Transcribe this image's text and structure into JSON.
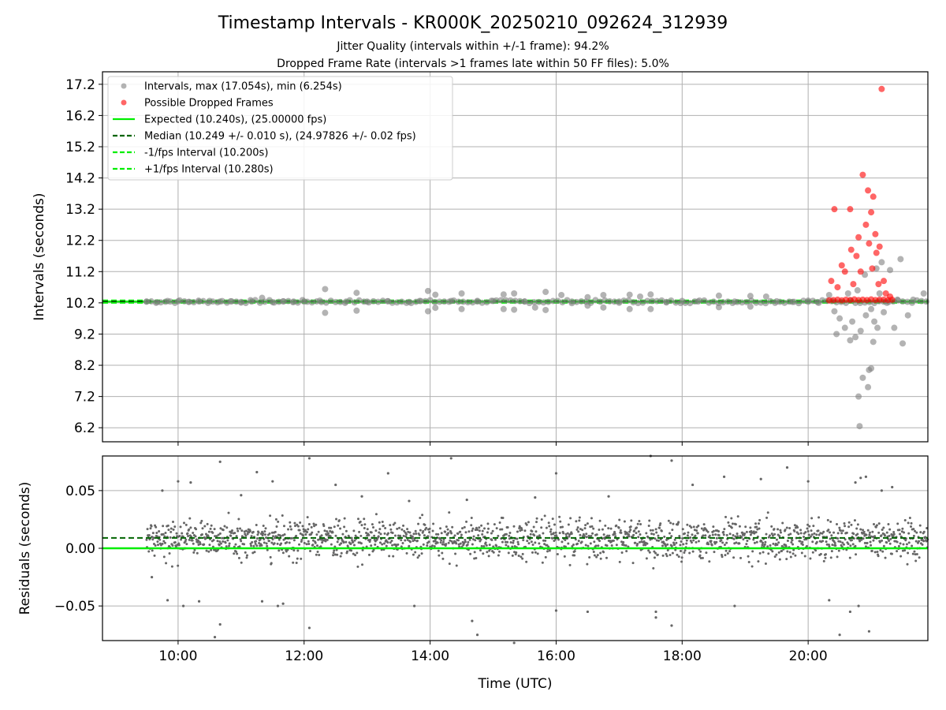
{
  "figure": {
    "title": "Timestamp Intervals - KR000K_20250210_092624_312939",
    "subtitle_1": "Jitter Quality (intervals within +/-1 frame): 94.2%",
    "subtitle_2": "Dropped Frame Rate (intervals >1 frames late within 50 FF files): 5.0%"
  },
  "colors": {
    "intervals": "#808080",
    "dropped": "#ff0000",
    "expected": "#00ee00",
    "median": "#006400",
    "bounds": "#00ee00",
    "residuals": "#666666",
    "grid": "#b0b0b0"
  },
  "chart_data": [
    {
      "type": "scatter",
      "panel": "top",
      "ylabel": "Intervals (seconds)",
      "xlabel": "",
      "xlim": [
        "08:48",
        "21:54"
      ],
      "ylim": [
        5.75,
        17.6
      ],
      "yticks": [
        6.2,
        7.2,
        8.2,
        9.2,
        10.2,
        11.2,
        12.2,
        13.2,
        14.2,
        15.2,
        16.2,
        17.2
      ],
      "grid": true,
      "legend_position": "top-left",
      "legend": [
        {
          "label": "Intervals, max (17.054s), min (6.254s)",
          "kind": "marker",
          "color": "#808080"
        },
        {
          "label": "Possible Dropped Frames",
          "kind": "marker",
          "color": "#ff0000"
        },
        {
          "label": "Expected (10.240s), (25.00000 fps)",
          "kind": "line-solid",
          "color": "#00ee00"
        },
        {
          "label": "Median (10.249 +/- 0.010 s), (24.97826 +/- 0.02 fps)",
          "kind": "line-dashed",
          "color": "#006400"
        },
        {
          "label": "-1/fps Interval (10.200s)",
          "kind": "line-dashed",
          "color": "#00ee00"
        },
        {
          "label": "+1/fps Interval (10.280s)",
          "kind": "line-dashed",
          "color": "#00ee00"
        }
      ],
      "lines": {
        "expected": 10.24,
        "median": 10.249,
        "minus_interval": 10.2,
        "plus_interval": 10.28
      },
      "series": [
        {
          "name": "Intervals, max (17.054s), min (6.254s)",
          "points": [
            [
              "09:30",
              10.24
            ],
            [
              "09:40",
              10.22
            ],
            [
              "09:50",
              10.26
            ],
            [
              "10:00",
              10.25
            ],
            [
              "10:10",
              10.23
            ],
            [
              "10:20",
              10.24
            ],
            [
              "10:30",
              10.26
            ],
            [
              "10:40",
              10.24
            ],
            [
              "10:50",
              10.25
            ],
            [
              "11:00",
              10.23
            ],
            [
              "11:10",
              10.24
            ],
            [
              "11:20",
              10.36
            ],
            [
              "11:30",
              10.22
            ],
            [
              "11:40",
              10.25
            ],
            [
              "11:50",
              10.24
            ],
            [
              "12:00",
              10.24
            ],
            [
              "12:15",
              10.27
            ],
            [
              "12:20",
              10.64
            ],
            [
              "12:20",
              9.88
            ],
            [
              "12:40",
              10.24
            ],
            [
              "12:50",
              10.52
            ],
            [
              "12:50",
              9.95
            ],
            [
              "13:00",
              10.24
            ],
            [
              "13:20",
              10.25
            ],
            [
              "13:40",
              10.23
            ],
            [
              "13:50",
              10.26
            ],
            [
              "13:58",
              10.58
            ],
            [
              "13:58",
              9.93
            ],
            [
              "14:05",
              10.46
            ],
            [
              "14:05",
              10.04
            ],
            [
              "14:20",
              10.26
            ],
            [
              "14:30",
              10.5
            ],
            [
              "14:30",
              10.0
            ],
            [
              "14:45",
              10.24
            ],
            [
              "15:00",
              10.26
            ],
            [
              "15:10",
              10.47
            ],
            [
              "15:10",
              10.0
            ],
            [
              "15:20",
              10.5
            ],
            [
              "15:20",
              9.98
            ],
            [
              "15:30",
              10.24
            ],
            [
              "15:40",
              10.05
            ],
            [
              "15:50",
              10.55
            ],
            [
              "15:50",
              9.97
            ],
            [
              "16:05",
              10.45
            ],
            [
              "16:15",
              10.24
            ],
            [
              "16:30",
              10.38
            ],
            [
              "16:30",
              10.11
            ],
            [
              "16:45",
              10.45
            ],
            [
              "16:45",
              10.05
            ],
            [
              "17:00",
              10.24
            ],
            [
              "17:10",
              10.46
            ],
            [
              "17:10",
              10.0
            ],
            [
              "17:20",
              10.4
            ],
            [
              "17:30",
              10.47
            ],
            [
              "17:30",
              10.0
            ],
            [
              "17:45",
              10.23
            ],
            [
              "18:00",
              10.26
            ],
            [
              "18:15",
              10.24
            ],
            [
              "18:35",
              10.43
            ],
            [
              "18:35",
              10.06
            ],
            [
              "18:50",
              10.24
            ],
            [
              "19:05",
              10.42
            ],
            [
              "19:05",
              10.08
            ],
            [
              "19:20",
              10.4
            ],
            [
              "19:30",
              10.25
            ],
            [
              "19:45",
              10.23
            ],
            [
              "20:00",
              10.27
            ],
            [
              "20:10",
              10.2
            ],
            [
              "20:20",
              10.45
            ],
            [
              "20:25",
              9.93
            ],
            [
              "20:27",
              9.2
            ],
            [
              "20:30",
              9.7
            ],
            [
              "20:35",
              9.4
            ],
            [
              "20:38",
              10.5
            ],
            [
              "20:40",
              9.0
            ],
            [
              "20:42",
              9.6
            ],
            [
              "20:45",
              9.1
            ],
            [
              "20:47",
              10.6
            ],
            [
              "20:48",
              7.2
            ],
            [
              "20:49",
              6.25
            ],
            [
              "20:50",
              9.3
            ],
            [
              "20:52",
              7.8
            ],
            [
              "20:54",
              11.1
            ],
            [
              "20:55",
              9.8
            ],
            [
              "20:57",
              7.5
            ],
            [
              "20:58",
              8.05
            ],
            [
              "21:00",
              8.1
            ],
            [
              "21:00",
              10.0
            ],
            [
              "21:02",
              8.95
            ],
            [
              "21:03",
              9.6
            ],
            [
              "21:05",
              11.3
            ],
            [
              "21:06",
              9.4
            ],
            [
              "21:08",
              10.5
            ],
            [
              "21:10",
              11.5
            ],
            [
              "21:12",
              9.9
            ],
            [
              "21:15",
              10.2
            ],
            [
              "21:18",
              11.25
            ],
            [
              "21:22",
              9.4
            ],
            [
              "21:25",
              10.3
            ],
            [
              "21:28",
              11.6
            ],
            [
              "21:30",
              8.9
            ],
            [
              "21:35",
              9.8
            ],
            [
              "21:40",
              10.3
            ],
            [
              "21:50",
              10.5
            ]
          ]
        },
        {
          "name": "Possible Dropped Frames",
          "points": [
            [
              "20:22",
              10.9
            ],
            [
              "20:25",
              13.2
            ],
            [
              "20:28",
              10.7
            ],
            [
              "20:32",
              11.4
            ],
            [
              "20:35",
              11.2
            ],
            [
              "20:40",
              13.2
            ],
            [
              "20:41",
              11.9
            ],
            [
              "20:43",
              10.8
            ],
            [
              "20:46",
              11.7
            ],
            [
              "20:48",
              12.3
            ],
            [
              "20:50",
              11.2
            ],
            [
              "20:52",
              14.3
            ],
            [
              "20:55",
              12.7
            ],
            [
              "20:57",
              13.8
            ],
            [
              "20:58",
              12.1
            ],
            [
              "21:00",
              13.1
            ],
            [
              "21:01",
              11.3
            ],
            [
              "21:02",
              13.6
            ],
            [
              "21:04",
              12.4
            ],
            [
              "21:05",
              11.8
            ],
            [
              "21:07",
              10.8
            ],
            [
              "21:08",
              12.0
            ],
            [
              "21:10",
              17.05
            ],
            [
              "21:12",
              10.9
            ],
            [
              "21:14",
              10.5
            ],
            [
              "21:18",
              10.4
            ],
            [
              "20:20",
              10.28
            ],
            [
              "20:24",
              10.29
            ],
            [
              "20:28",
              10.3
            ],
            [
              "20:32",
              10.28
            ],
            [
              "20:36",
              10.3
            ],
            [
              "20:40",
              10.29
            ],
            [
              "20:44",
              10.31
            ],
            [
              "20:48",
              10.29
            ],
            [
              "20:52",
              10.3
            ],
            [
              "20:56",
              10.29
            ],
            [
              "21:00",
              10.31
            ],
            [
              "21:04",
              10.29
            ],
            [
              "21:08",
              10.3
            ],
            [
              "21:12",
              10.3
            ],
            [
              "21:16",
              10.29
            ],
            [
              "21:20",
              10.3
            ]
          ]
        }
      ]
    },
    {
      "type": "scatter",
      "panel": "bottom",
      "ylabel": "Residuals (seconds)",
      "xlabel": "Time (UTC)",
      "xlim": [
        "08:48",
        "21:54"
      ],
      "ylim": [
        -0.08,
        0.08
      ],
      "xticks": [
        "10:00",
        "12:00",
        "14:00",
        "16:00",
        "18:00",
        "20:00"
      ],
      "yticks": [
        {
          "value": 0.05,
          "label": "0.05"
        },
        {
          "value": 0.0,
          "label": "0.00"
        },
        {
          "value": -0.05,
          "label": "−0.05"
        }
      ],
      "grid": true,
      "lines": {
        "zero": 0.0,
        "median_offset": 0.009
      },
      "series": [
        {
          "name": "Residuals",
          "summary": {
            "start": "09:30",
            "end": "21:54",
            "center": 0.008,
            "spread": 0.012
          },
          "outliers": [
            [
              "09:35",
              -0.025
            ],
            [
              "09:45",
              0.05
            ],
            [
              "09:50",
              -0.045
            ],
            [
              "10:00",
              0.058
            ],
            [
              "10:05",
              -0.05
            ],
            [
              "10:12",
              0.057
            ],
            [
              "10:20",
              -0.046
            ],
            [
              "10:40",
              0.075
            ],
            [
              "10:40",
              -0.066
            ],
            [
              "10:35",
              -0.077
            ],
            [
              "11:00",
              0.046
            ],
            [
              "11:15",
              0.066
            ],
            [
              "11:20",
              -0.046
            ],
            [
              "11:30",
              0.058
            ],
            [
              "11:35",
              -0.05
            ],
            [
              "11:40",
              -0.048
            ],
            [
              "12:05",
              0.078
            ],
            [
              "12:05",
              -0.069
            ],
            [
              "12:30",
              0.055
            ],
            [
              "12:55",
              0.045
            ],
            [
              "13:20",
              0.065
            ],
            [
              "13:40",
              0.041
            ],
            [
              "13:45",
              -0.05
            ],
            [
              "14:20",
              0.078
            ],
            [
              "14:35",
              0.042
            ],
            [
              "14:40",
              -0.063
            ],
            [
              "14:45",
              -0.075
            ],
            [
              "15:20",
              -0.082
            ],
            [
              "15:40",
              0.044
            ],
            [
              "16:00",
              0.065
            ],
            [
              "16:00",
              -0.054
            ],
            [
              "16:30",
              -0.055
            ],
            [
              "16:50",
              0.045
            ],
            [
              "17:30",
              0.08
            ],
            [
              "17:35",
              -0.055
            ],
            [
              "17:35",
              -0.06
            ],
            [
              "17:50",
              0.076
            ],
            [
              "17:50",
              -0.067
            ],
            [
              "18:10",
              0.055
            ],
            [
              "18:40",
              0.062
            ],
            [
              "18:50",
              -0.05
            ],
            [
              "19:15",
              0.06
            ],
            [
              "19:40",
              0.07
            ],
            [
              "20:00",
              0.058
            ],
            [
              "20:20",
              -0.045
            ],
            [
              "20:30",
              -0.075
            ],
            [
              "20:40",
              -0.055
            ],
            [
              "20:45",
              0.057
            ],
            [
              "20:48",
              -0.05
            ],
            [
              "20:50",
              0.061
            ],
            [
              "20:55",
              0.062
            ],
            [
              "20:58",
              -0.072
            ],
            [
              "21:10",
              0.05
            ],
            [
              "21:20",
              0.053
            ]
          ]
        }
      ]
    }
  ]
}
